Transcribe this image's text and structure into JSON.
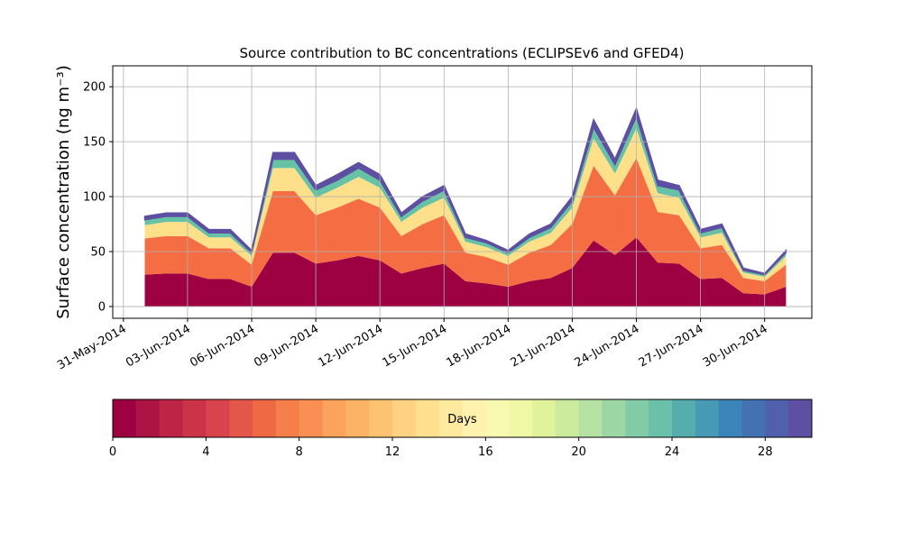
{
  "chart_data": {
    "type": "stacked_area",
    "title": "Source contribution to BC concentrations (ECLIPSEv6 and GFED4)",
    "y_label": "Surface concentration (ng m⁻³)",
    "x": [
      "2014-06-01",
      "2014-06-02",
      "2014-06-03",
      "2014-06-04",
      "2014-06-05",
      "2014-06-06",
      "2014-06-07",
      "2014-06-08",
      "2014-06-09",
      "2014-06-10",
      "2014-06-11",
      "2014-06-12",
      "2014-06-13",
      "2014-06-14",
      "2014-06-15",
      "2014-06-16",
      "2014-06-17",
      "2014-06-18",
      "2014-06-19",
      "2014-06-20",
      "2014-06-21",
      "2014-06-22",
      "2014-06-23",
      "2014-06-24",
      "2014-06-25",
      "2014-06-26",
      "2014-06-27",
      "2014-06-28",
      "2014-06-29",
      "2014-06-30",
      "2014-07-01"
    ],
    "series": [
      {
        "color": "#9e0142",
        "values": [
          29,
          30,
          30,
          25,
          25,
          18,
          49,
          49,
          39,
          42,
          46,
          42,
          30,
          35,
          39,
          23,
          21,
          18,
          23,
          26,
          35,
          60,
          47,
          63,
          40,
          39,
          25,
          26,
          12,
          11,
          18
        ]
      },
      {
        "color": "#f46d43",
        "values": [
          33,
          34,
          34,
          28,
          28,
          20,
          56,
          56,
          44,
          48,
          52,
          48,
          34,
          40,
          44,
          26,
          24,
          20,
          26,
          30,
          40,
          68,
          54,
          72,
          46,
          44,
          28,
          30,
          14,
          12,
          20
        ]
      },
      {
        "color": "#fee08b",
        "values": [
          12,
          13,
          13,
          10,
          10,
          8,
          21,
          21,
          16,
          18,
          20,
          18,
          13,
          15,
          16,
          10,
          9,
          8,
          10,
          11,
          15,
          25,
          20,
          27,
          17,
          16,
          10,
          11,
          5,
          4,
          8
        ]
      },
      {
        "color": "#66c2a5",
        "values": [
          5,
          5,
          5,
          4,
          4,
          3,
          8,
          8,
          7,
          7,
          8,
          7,
          5,
          6,
          7,
          4,
          4,
          3,
          4,
          5,
          6,
          10,
          8,
          11,
          7,
          7,
          4,
          5,
          2,
          2,
          3
        ]
      },
      {
        "color": "#5e4fa2",
        "values": [
          3,
          3,
          3,
          3,
          3,
          2,
          6,
          6,
          4,
          5,
          5,
          5,
          3,
          4,
          4,
          3,
          2,
          2,
          3,
          3,
          4,
          7,
          5,
          7,
          5,
          4,
          3,
          3,
          2,
          1,
          2
        ]
      }
    ],
    "xlim": [
      "2014-05-30T12:00",
      "2014-07-02T05:00"
    ],
    "xticks": [
      {
        "value": "2014-05-31",
        "label": "31-May-2014"
      },
      {
        "value": "2014-06-03",
        "label": "03-Jun-2014"
      },
      {
        "value": "2014-06-06",
        "label": "06-Jun-2014"
      },
      {
        "value": "2014-06-09",
        "label": "09-Jun-2014"
      },
      {
        "value": "2014-06-12",
        "label": "12-Jun-2014"
      },
      {
        "value": "2014-06-15",
        "label": "15-Jun-2014"
      },
      {
        "value": "2014-06-18",
        "label": "18-Jun-2014"
      },
      {
        "value": "2014-06-21",
        "label": "21-Jun-2014"
      },
      {
        "value": "2014-06-24",
        "label": "24-Jun-2014"
      },
      {
        "value": "2014-06-27",
        "label": "27-Jun-2014"
      },
      {
        "value": "2014-06-30",
        "label": "30-Jun-2014"
      }
    ],
    "ylim": [
      -10.7,
      219
    ],
    "yticks": [
      0,
      50,
      100,
      150,
      200
    ],
    "grid": true,
    "colorbar": {
      "label": "Days",
      "lim": [
        0,
        30
      ],
      "ticks": [
        0,
        4,
        8,
        12,
        16,
        20,
        24,
        28
      ],
      "colors": [
        "#9e0142",
        "#ad1444",
        "#bd2446",
        "#cc3348",
        "#d8434c",
        "#e4564a",
        "#ed6a45",
        "#f47f4b",
        "#f98f52",
        "#fba25d",
        "#fdb365",
        "#fdc373",
        "#fed282",
        "#fee08f",
        "#fee99e",
        "#fff2ae",
        "#f8f9b0",
        "#eef8a5",
        "#e0f29b",
        "#cdeb9c",
        "#b5e1a2",
        "#9cd6a4",
        "#81cba6",
        "#6ac0a8",
        "#56adad",
        "#4799b4",
        "#3b85ba",
        "#4471b2",
        "#5160ac",
        "#5e4fa2"
      ]
    }
  }
}
